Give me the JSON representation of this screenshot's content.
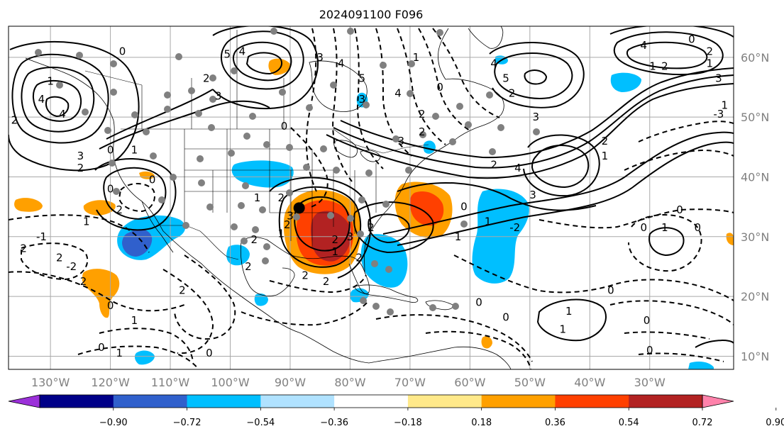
{
  "title": "2024091100 F096",
  "map": {
    "lon_range": [
      -137,
      -16
    ],
    "lat_range": [
      7.8,
      65.2
    ],
    "lon_ticks": [
      {
        "value": -130,
        "label": "130°W"
      },
      {
        "value": -120,
        "label": "120°W"
      },
      {
        "value": -110,
        "label": "110°W"
      },
      {
        "value": -100,
        "label": "100°W"
      },
      {
        "value": -90,
        "label": "90°W"
      },
      {
        "value": -80,
        "label": "80°W"
      },
      {
        "value": -70,
        "label": "70°W"
      },
      {
        "value": -60,
        "label": "60°W"
      },
      {
        "value": -50,
        "label": "50°W"
      },
      {
        "value": -40,
        "label": "40°W"
      },
      {
        "value": -30,
        "label": "30°W"
      }
    ],
    "lat_ticks": [
      {
        "value": 10,
        "label": "10°N"
      },
      {
        "value": 20,
        "label": "20°N"
      },
      {
        "value": 30,
        "label": "30°N"
      },
      {
        "value": 40,
        "label": "40°N"
      },
      {
        "value": 50,
        "label": "50°N"
      },
      {
        "value": 60,
        "label": "60°N"
      }
    ],
    "grid": true
  },
  "colorbar": {
    "ticks": [
      "−0.90",
      "−0.72",
      "−0.54",
      "−0.36",
      "−0.18",
      "0.18",
      "0.36",
      "0.54",
      "0.72",
      "0.90"
    ],
    "bins": [
      "#9b30d9",
      "#000088",
      "#3060cc",
      "#00bfff",
      "#b0e2ff",
      "#ffffff",
      "#ffe98a",
      "#ffa000",
      "#ff4000",
      "#b22222",
      "#ff82ab"
    ],
    "extend": "both"
  },
  "storm_center": {
    "lon": -88.5,
    "lat": 34.8
  },
  "contour_labels": [
    {
      "text": "0",
      "lon": -118,
      "lat": 61
    },
    {
      "text": "5",
      "lon": -100.5,
      "lat": 60.5
    },
    {
      "text": "4",
      "lon": -98,
      "lat": 61
    },
    {
      "text": "2",
      "lon": -104,
      "lat": 56.5
    },
    {
      "text": "3",
      "lon": -102,
      "lat": 53.5
    },
    {
      "text": "1",
      "lon": -130,
      "lat": 56
    },
    {
      "text": "4",
      "lon": -131.5,
      "lat": 53
    },
    {
      "text": "4",
      "lon": -128,
      "lat": 50.5
    },
    {
      "text": "2",
      "lon": -136,
      "lat": 49.5
    },
    {
      "text": "3",
      "lon": -125,
      "lat": 43.5
    },
    {
      "text": "2",
      "lon": -125,
      "lat": 41.5
    },
    {
      "text": "0",
      "lon": -120,
      "lat": 44.5
    },
    {
      "text": "1",
      "lon": -116,
      "lat": 44.5
    },
    {
      "text": "0",
      "lon": -113,
      "lat": 39.5
    },
    {
      "text": "0",
      "lon": -120,
      "lat": 38
    },
    {
      "text": "2",
      "lon": -118.5,
      "lat": 34.5
    },
    {
      "text": "1",
      "lon": -124,
      "lat": 32.5
    },
    {
      "text": "-1",
      "lon": -131.5,
      "lat": 30
    },
    {
      "text": "2",
      "lon": -134.5,
      "lat": 28
    },
    {
      "text": "2",
      "lon": -128.5,
      "lat": 26.5
    },
    {
      "text": "-2",
      "lon": -126.5,
      "lat": 25
    },
    {
      "text": "2",
      "lon": -124.5,
      "lat": 22.5
    },
    {
      "text": "0",
      "lon": -120,
      "lat": 18.5
    },
    {
      "text": "1",
      "lon": -116,
      "lat": 16
    },
    {
      "text": "0",
      "lon": -121.5,
      "lat": 11.5
    },
    {
      "text": "1",
      "lon": -118.5,
      "lat": 10.5
    },
    {
      "text": "2",
      "lon": -108,
      "lat": 21
    },
    {
      "text": "0",
      "lon": -103.5,
      "lat": 10.5
    },
    {
      "text": "0",
      "lon": -91,
      "lat": 48.5
    },
    {
      "text": "3",
      "lon": -85,
      "lat": 60
    },
    {
      "text": "4",
      "lon": -81.5,
      "lat": 59
    },
    {
      "text": "5",
      "lon": -78,
      "lat": 56.5
    },
    {
      "text": "4",
      "lon": -72,
      "lat": 54
    },
    {
      "text": "2",
      "lon": -68,
      "lat": 50.5
    },
    {
      "text": "2",
      "lon": -68,
      "lat": 47.5
    },
    {
      "text": "3",
      "lon": -71.5,
      "lat": 46
    },
    {
      "text": "1",
      "lon": -69,
      "lat": 60
    },
    {
      "text": "0",
      "lon": -65,
      "lat": 55
    },
    {
      "text": "2",
      "lon": -53,
      "lat": 54
    },
    {
      "text": "3",
      "lon": -78,
      "lat": 53
    },
    {
      "text": "1",
      "lon": -95.5,
      "lat": 36.5
    },
    {
      "text": "2",
      "lon": -91.5,
      "lat": 36.5
    },
    {
      "text": "3",
      "lon": -90,
      "lat": 33.5
    },
    {
      "text": "2",
      "lon": -90.5,
      "lat": 32
    },
    {
      "text": "1",
      "lon": -91.5,
      "lat": 30.5
    },
    {
      "text": "2",
      "lon": -96,
      "lat": 29.5
    },
    {
      "text": "2",
      "lon": -97,
      "lat": 25
    },
    {
      "text": "2",
      "lon": -87.5,
      "lat": 23.5
    },
    {
      "text": "2",
      "lon": -84,
      "lat": 22.5
    },
    {
      "text": "3",
      "lon": -80,
      "lat": 30
    },
    {
      "text": "2",
      "lon": -76.5,
      "lat": 31.5
    },
    {
      "text": "2",
      "lon": -82.5,
      "lat": 29.5
    },
    {
      "text": "2",
      "lon": -78.5,
      "lat": 26.5
    },
    {
      "text": "1",
      "lon": -82.5,
      "lat": 27.5
    },
    {
      "text": "0",
      "lon": -61,
      "lat": 35
    },
    {
      "text": "1",
      "lon": -57,
      "lat": 32.5
    },
    {
      "text": "1",
      "lon": -62,
      "lat": 30
    },
    {
      "text": "-2",
      "lon": -52.5,
      "lat": 31.5
    },
    {
      "text": "3",
      "lon": -49.5,
      "lat": 37
    },
    {
      "text": "4",
      "lon": -52,
      "lat": 41.5
    },
    {
      "text": "2",
      "lon": -56,
      "lat": 42
    },
    {
      "text": "4",
      "lon": -56,
      "lat": 59
    },
    {
      "text": "5",
      "lon": -54,
      "lat": 56.5
    },
    {
      "text": "3",
      "lon": -49,
      "lat": 50
    },
    {
      "text": "1",
      "lon": -29.5,
      "lat": 58.5
    },
    {
      "text": "2",
      "lon": -27.5,
      "lat": 58.5
    },
    {
      "text": "0",
      "lon": -23,
      "lat": 63
    },
    {
      "text": "2",
      "lon": -20,
      "lat": 61
    },
    {
      "text": "1",
      "lon": -20,
      "lat": 59
    },
    {
      "text": "4",
      "lon": -31,
      "lat": 62
    },
    {
      "text": "3",
      "lon": -18.5,
      "lat": 56.5
    },
    {
      "text": "1",
      "lon": -17.5,
      "lat": 52
    },
    {
      "text": "-3",
      "lon": -18.5,
      "lat": 50.5
    },
    {
      "text": "2",
      "lon": -37.5,
      "lat": 46
    },
    {
      "text": "1",
      "lon": -37.5,
      "lat": 43.5
    },
    {
      "text": "0",
      "lon": -25,
      "lat": 34.5
    },
    {
      "text": "0",
      "lon": -31,
      "lat": 31.5
    },
    {
      "text": "1",
      "lon": -27.5,
      "lat": 31.5
    },
    {
      "text": "0",
      "lon": -22,
      "lat": 31.5
    },
    {
      "text": "0",
      "lon": -36.5,
      "lat": 21
    },
    {
      "text": "0",
      "lon": -58.5,
      "lat": 19
    },
    {
      "text": "1",
      "lon": -43.5,
      "lat": 17.5
    },
    {
      "text": "1",
      "lon": -44.5,
      "lat": 14.5
    },
    {
      "text": "0",
      "lon": -54,
      "lat": 16.5
    },
    {
      "text": "0",
      "lon": -30.5,
      "lat": 16
    },
    {
      "text": "0",
      "lon": -30,
      "lat": 11
    }
  ]
}
